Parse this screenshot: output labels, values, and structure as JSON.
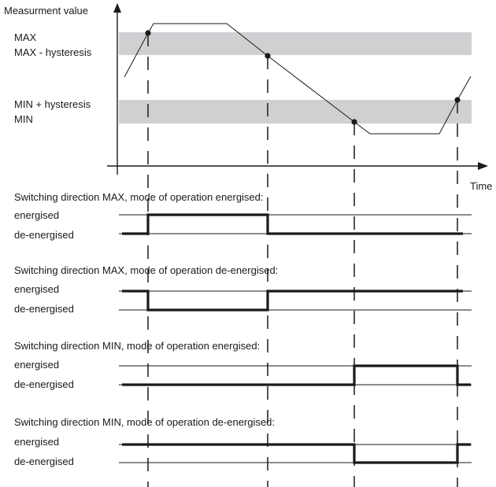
{
  "axis": {
    "y_label": "Measurment value",
    "x_label": "Time"
  },
  "levels": {
    "max": "MAX",
    "max_minus_hysteresis": "MAX - hysteresis",
    "min_plus_hysteresis": "MIN + hysteresis",
    "min": "MIN"
  },
  "state_labels": {
    "energised": "energised",
    "de_energised": "de-energised"
  },
  "panels": [
    {
      "title": "Switching direction MAX, mode of operation energised:",
      "initial_state": "de-energised",
      "states_after_events": [
        "energised",
        "de-energised",
        "de-energised",
        "de-energised"
      ]
    },
    {
      "title": "Switching direction MAX, mode of operation de-energised:",
      "initial_state": "energised",
      "states_after_events": [
        "de-energised",
        "energised",
        "energised",
        "energised"
      ]
    },
    {
      "title": "Switching direction MIN, mode of operation energised:",
      "initial_state": "de-energised",
      "states_after_events": [
        "de-energised",
        "de-energised",
        "energised",
        "de-energised"
      ]
    },
    {
      "title": "Switching direction MIN, mode of operation de-energised:",
      "initial_state": "energised",
      "states_after_events": [
        "energised",
        "energised",
        "de-energised",
        "energised"
      ]
    }
  ]
}
